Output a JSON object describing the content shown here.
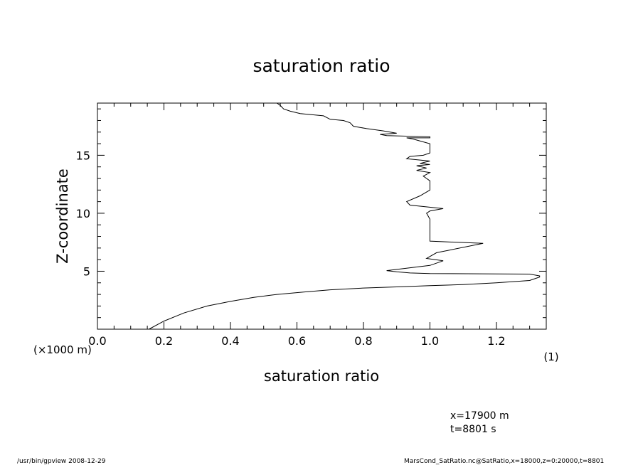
{
  "chart_data": {
    "type": "line",
    "title": "saturation ratio",
    "xlabel": "saturation ratio",
    "ylabel": "Z-coordinate",
    "xunit": "(1)",
    "yunit": "(×1000 m)",
    "xlim": [
      0.0,
      1.35
    ],
    "ylim": [
      0,
      19.5
    ],
    "xticks": [
      "0.0",
      "0.2",
      "0.4",
      "0.6",
      "0.8",
      "1.0",
      "1.2"
    ],
    "yticks": [
      "5",
      "10",
      "15"
    ],
    "grid": false,
    "series": [
      {
        "x": [
          0.155,
          0.2,
          0.26,
          0.33,
          0.4,
          0.47,
          0.54,
          0.62,
          0.7,
          0.8,
          0.9,
          1.0,
          1.1,
          1.2,
          1.3,
          1.33,
          1.33,
          1.3,
          1.0,
          0.94,
          0.9,
          0.87,
          1.0,
          1.04,
          0.99,
          1.02,
          1.16,
          1.0,
          1.0,
          1.0,
          0.99,
          1.0,
          1.04,
          0.94,
          0.93,
          0.97,
          1.0,
          1.0,
          0.99,
          0.98,
          1.0,
          0.96,
          0.99,
          0.96,
          1.0,
          0.97,
          1.0,
          0.93,
          0.94,
          0.98,
          1.0,
          1.0,
          0.95,
          0.93,
          1.0,
          1.0,
          0.87,
          0.85,
          0.9,
          0.86,
          0.81,
          0.77,
          0.76,
          0.74,
          0.7,
          0.68,
          0.61,
          0.58,
          0.56,
          0.55,
          0.54
        ],
        "y": [
          0.0,
          0.7,
          1.4,
          2.0,
          2.4,
          2.75,
          3.0,
          3.2,
          3.4,
          3.55,
          3.65,
          3.75,
          3.85,
          4.0,
          4.2,
          4.5,
          4.6,
          4.75,
          4.8,
          4.85,
          4.95,
          5.05,
          5.5,
          5.9,
          6.1,
          6.6,
          7.4,
          7.6,
          8.5,
          9.5,
          10.0,
          10.2,
          10.4,
          10.7,
          11.0,
          11.5,
          12.0,
          12.8,
          13.0,
          13.2,
          13.5,
          13.7,
          13.9,
          14.1,
          14.2,
          14.3,
          14.5,
          14.7,
          14.9,
          15.0,
          15.2,
          16.0,
          16.4,
          16.5,
          16.5,
          16.6,
          16.7,
          16.8,
          16.9,
          17.1,
          17.3,
          17.5,
          17.8,
          18.0,
          18.1,
          18.4,
          18.6,
          18.8,
          19.0,
          19.3,
          19.5
        ]
      }
    ]
  },
  "info": {
    "coords_x": "x=17900  m",
    "coords_t": "t=8801  s"
  },
  "footer": {
    "left": "/usr/bin/gpview   2008-12-29",
    "right": "MarsCond_SatRatio.nc@SatRatio,x=18000,z=0:20000,t=8801"
  }
}
